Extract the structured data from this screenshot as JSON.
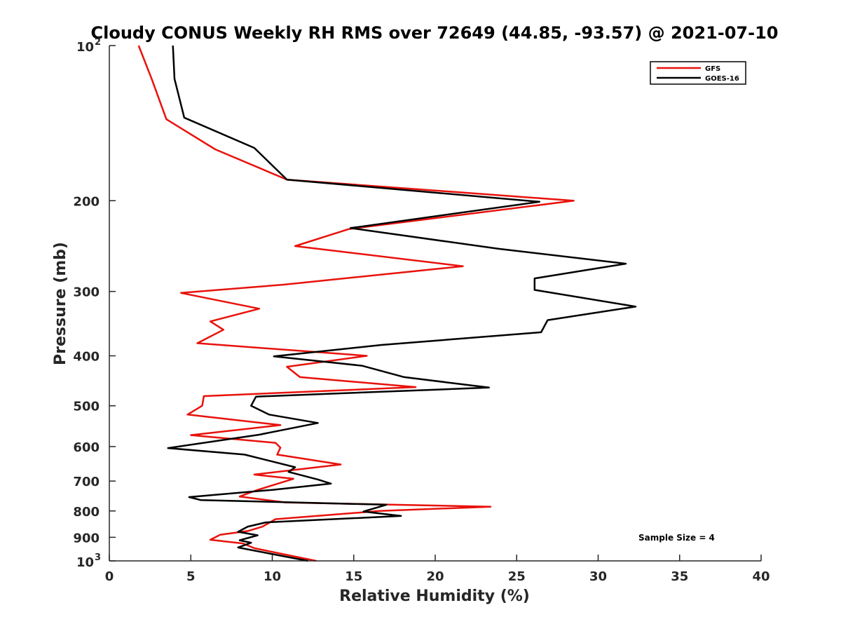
{
  "chart_data": {
    "type": "line",
    "title": "Cloudy CONUS Weekly RH RMS over 72649 (44.85, -93.57) @ 2021-07-10",
    "xlabel": "Relative Humidity (%)",
    "ylabel": "Pressure (mb)",
    "xlim": [
      0,
      40
    ],
    "ylim": [
      100,
      1000
    ],
    "yscale": "log",
    "y_reversed": true,
    "grid": false,
    "legend_position": "top-right",
    "x_ticks": [
      {
        "value": 0,
        "label": "0"
      },
      {
        "value": 5,
        "label": "5"
      },
      {
        "value": 10,
        "label": "10"
      },
      {
        "value": 15,
        "label": "15"
      },
      {
        "value": 20,
        "label": "20"
      },
      {
        "value": 25,
        "label": "25"
      },
      {
        "value": 30,
        "label": "30"
      },
      {
        "value": 35,
        "label": "35"
      },
      {
        "value": 40,
        "label": "40"
      }
    ],
    "y_ticks": [
      {
        "value": 100,
        "label": "10",
        "exp": "2"
      },
      {
        "value": 200,
        "label": "200"
      },
      {
        "value": 300,
        "label": "300"
      },
      {
        "value": 400,
        "label": "400"
      },
      {
        "value": 500,
        "label": "500"
      },
      {
        "value": 600,
        "label": "600"
      },
      {
        "value": 700,
        "label": "700"
      },
      {
        "value": 800,
        "label": "800"
      },
      {
        "value": 900,
        "label": "900"
      },
      {
        "value": 1000,
        "label": "10",
        "exp": "3"
      }
    ],
    "series": [
      {
        "name": "GFS",
        "color": "#e8120c",
        "points": [
          [
            1.8,
            100
          ],
          [
            2.6,
            116
          ],
          [
            3.5,
            139
          ],
          [
            6.5,
            159
          ],
          [
            10.9,
            182
          ],
          [
            28.5,
            200
          ],
          [
            14.7,
            227
          ],
          [
            11.4,
            245
          ],
          [
            21.7,
            268
          ],
          [
            10.7,
            291
          ],
          [
            4.4,
            302
          ],
          [
            9.2,
            324
          ],
          [
            6.2,
            343
          ],
          [
            7.0,
            356
          ],
          [
            5.4,
            378
          ],
          [
            15.8,
            400
          ],
          [
            10.9,
            420
          ],
          [
            11.7,
            440
          ],
          [
            18.8,
            460
          ],
          [
            5.8,
            479
          ],
          [
            5.7,
            500
          ],
          [
            4.8,
            520
          ],
          [
            10.5,
            545
          ],
          [
            5.0,
            570
          ],
          [
            10.2,
            590
          ],
          [
            10.5,
            603
          ],
          [
            10.3,
            622
          ],
          [
            14.2,
            650
          ],
          [
            8.9,
            680
          ],
          [
            11.3,
            693
          ],
          [
            9.0,
            730
          ],
          [
            8.0,
            750
          ],
          [
            10.8,
            770
          ],
          [
            23.4,
            785
          ],
          [
            16.6,
            800
          ],
          [
            10.2,
            830
          ],
          [
            9.4,
            858
          ],
          [
            8.5,
            875
          ],
          [
            6.8,
            890
          ],
          [
            6.2,
            910
          ],
          [
            8.2,
            925
          ],
          [
            8.9,
            945
          ],
          [
            12.7,
            1000
          ]
        ]
      },
      {
        "name": "GOES-16",
        "color": "#000000",
        "points": [
          [
            3.9,
            100
          ],
          [
            4.0,
            116
          ],
          [
            4.6,
            138
          ],
          [
            8.9,
            158
          ],
          [
            10.9,
            182
          ],
          [
            26.4,
            201
          ],
          [
            14.8,
            226
          ],
          [
            23.9,
            248
          ],
          [
            31.7,
            265
          ],
          [
            26.1,
            283
          ],
          [
            26.1,
            298
          ],
          [
            32.3,
            321
          ],
          [
            26.9,
            341
          ],
          [
            26.5,
            360
          ],
          [
            16.7,
            381
          ],
          [
            10.1,
            401
          ],
          [
            15.5,
            418
          ],
          [
            18.1,
            440
          ],
          [
            23.3,
            461
          ],
          [
            9.0,
            480
          ],
          [
            8.7,
            500
          ],
          [
            9.8,
            520
          ],
          [
            12.8,
            540
          ],
          [
            9.2,
            569
          ],
          [
            3.6,
            604
          ],
          [
            8.3,
            622
          ],
          [
            11.4,
            658
          ],
          [
            11.0,
            672
          ],
          [
            12.8,
            695
          ],
          [
            13.6,
            708
          ],
          [
            10.0,
            728
          ],
          [
            4.9,
            752
          ],
          [
            5.6,
            762
          ],
          [
            17.0,
            778
          ],
          [
            15.6,
            802
          ],
          [
            17.9,
            818
          ],
          [
            9.6,
            842
          ],
          [
            8.5,
            858
          ],
          [
            7.9,
            878
          ],
          [
            9.1,
            892
          ],
          [
            8.0,
            912
          ],
          [
            8.7,
            922
          ],
          [
            7.9,
            942
          ],
          [
            12.2,
            1000
          ]
        ]
      }
    ],
    "annotation": "Sample Size = 4"
  }
}
